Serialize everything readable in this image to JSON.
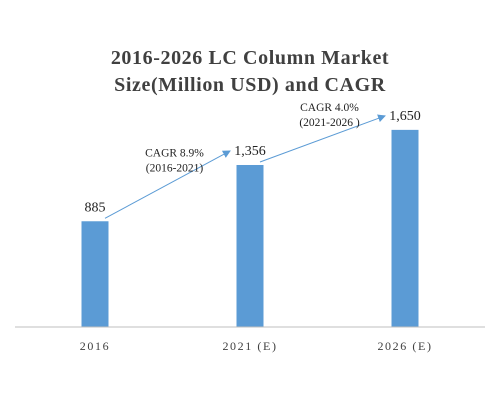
{
  "chart_data": {
    "type": "bar",
    "title_lines": [
      "2016-2026 LC Column Market",
      "Size(Million USD) and CAGR"
    ],
    "categories": [
      "2016",
      "2021 (E)",
      "2026 (E)"
    ],
    "values": [
      885,
      1356,
      1650
    ],
    "value_labels": [
      "885",
      "1,356",
      "1,650"
    ],
    "ylim": [
      0,
      1900
    ],
    "grid": false,
    "legend": "none",
    "annotations": [
      {
        "from": 0,
        "to": 1,
        "label": "CAGR 8.9%",
        "period": "(2016-2021)"
      },
      {
        "from": 1,
        "to": 2,
        "label": "CAGR 4.0%",
        "period": "(2021-2026 )"
      }
    ],
    "colors": {
      "bar": "#5b9bd5",
      "arrow": "#5b9bd5",
      "axis": "#bfbfbf"
    }
  }
}
